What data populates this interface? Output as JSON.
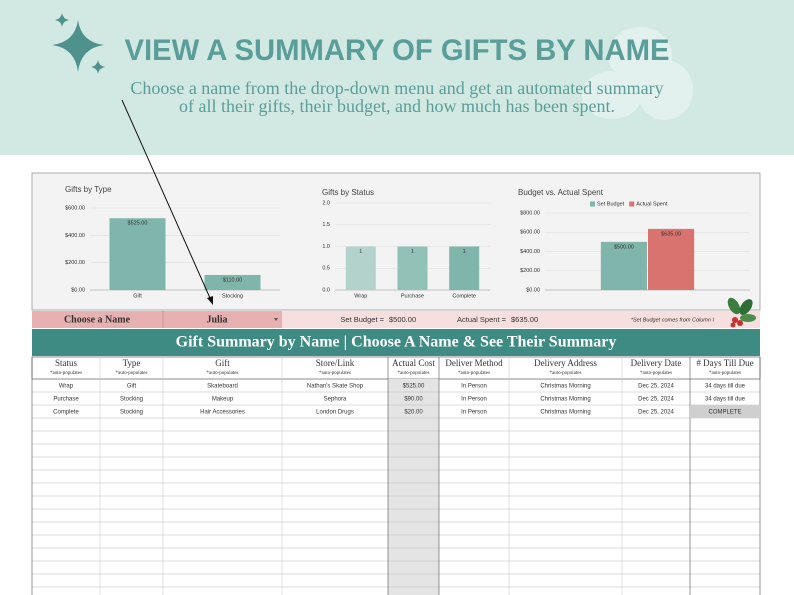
{
  "header": {
    "title": "VIEW A SUMMARY OF GIFTS BY NAME",
    "subtitle_lines": [
      "Choose a name from the drop-down menu and get an automated summary",
      "of all their gifts, their budget, and how much has been spent."
    ]
  },
  "chart_data": [
    {
      "type": "bar",
      "title": "Gifts by Type",
      "categories": [
        "Gift",
        "Stocking"
      ],
      "values": [
        525,
        110
      ],
      "value_labels": [
        "$525.00",
        "$110.00"
      ],
      "color": "#7fb5ab",
      "ylim": [
        0,
        600
      ],
      "yticks": [
        {
          "value": 0,
          "label": "$0.00"
        },
        {
          "value": 200,
          "label": "$200.00"
        },
        {
          "value": 400,
          "label": "$400.00"
        },
        {
          "value": 600,
          "label": "$600.00"
        }
      ],
      "grid": true
    },
    {
      "type": "bar",
      "title": "Gifts by Status",
      "categories": [
        "Wrap",
        "Purchase",
        "Complete"
      ],
      "values": [
        1,
        1,
        1
      ],
      "colors": [
        "#b3d2cc",
        "#92c1b8",
        "#7fb5ab"
      ],
      "ylim": [
        0,
        2
      ],
      "yticks": [
        {
          "value": 0,
          "label": "0.0"
        },
        {
          "value": 0.5,
          "label": "0.5"
        },
        {
          "value": 1,
          "label": "1.0"
        },
        {
          "value": 1.5,
          "label": "1.5"
        },
        {
          "value": 2,
          "label": "2.0"
        }
      ],
      "grid": true
    },
    {
      "type": "bar",
      "title": "Budget vs. Actual Spent",
      "categories": [
        null
      ],
      "series": [
        {
          "name": "Set Budget",
          "color": "#7fb5ab",
          "values": [
            500
          ],
          "value_labels": [
            "$500.00"
          ]
        },
        {
          "name": "Actual Spent",
          "color": "#d9736f",
          "values": [
            635
          ],
          "value_labels": [
            "$635.00"
          ]
        }
      ],
      "ylim": [
        0,
        800
      ],
      "legend": "top",
      "yticks": [
        {
          "value": 0,
          "label": "$0.00"
        },
        {
          "value": 200,
          "label": "$200.00"
        },
        {
          "value": 400,
          "label": "$400.00"
        },
        {
          "value": 600,
          "label": "$600.00"
        },
        {
          "value": 800,
          "label": "$800.00"
        }
      ],
      "grid": true
    }
  ],
  "selector": {
    "label": "Choose a Name",
    "name": "Julia",
    "budget_label": "Set Budget =",
    "budget": "$500.00",
    "spent_label": "Actual Spent =",
    "spent": "$635.00",
    "note": "*Set Budget comes from Column I"
  },
  "table": {
    "title": "Gift Summary by Name | Choose A Name & See Their Summary",
    "columns": [
      {
        "name": "Status",
        "note": "*auto-populates"
      },
      {
        "name": "Type",
        "note": "*auto-populates"
      },
      {
        "name": "Gift",
        "note": "*auto-populates"
      },
      {
        "name": "Store/Link",
        "note": "*auto-populates"
      },
      {
        "name": "Actual Cost",
        "note": "*auto-populates"
      },
      {
        "name": "Deliver Method",
        "note": "*auto-populates"
      },
      {
        "name": "Delivery Address",
        "note": "*auto-populates"
      },
      {
        "name": "Delivery Date",
        "note": "*auto-populates"
      },
      {
        "name": "# Days Till Due",
        "note": "*auto-populates"
      }
    ],
    "rows": [
      [
        "Wrap",
        "Gift",
        "Skateboard",
        "Nathan's Skate Shop",
        "$525.00",
        "In Person",
        "Christmas Morning",
        "Dec 25, 2024",
        "34 days till due"
      ],
      [
        "Purchase",
        "Stocking",
        "Makeup",
        "Sephora",
        "$90.00",
        "In Person",
        "Christmas Morning",
        "Dec 25, 2024",
        "34 days till due"
      ],
      [
        "Complete",
        "Stocking",
        "Hair Accessories",
        "London Drugs",
        "$20.00",
        "In Person",
        "Christmas Morning",
        "Dec 25, 2024",
        "COMPLETE"
      ]
    ]
  }
}
